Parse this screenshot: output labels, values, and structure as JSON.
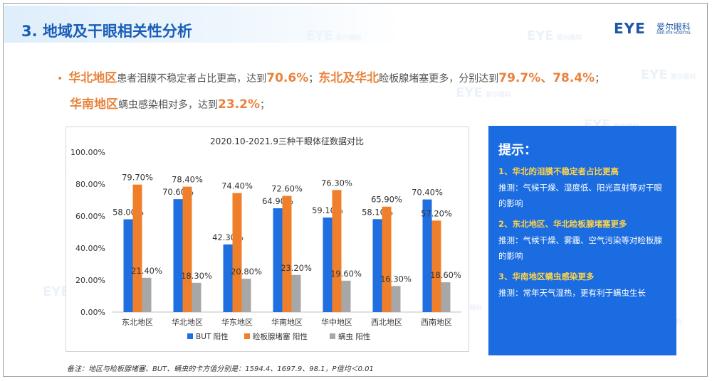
{
  "slide": {
    "title": "3. 地域及干眼相关性分析"
  },
  "logo": {
    "mark": "EYE",
    "cn": "爱尔眼科",
    "en": "AIER EYE HOSPITAL"
  },
  "watermark": {
    "mark": "EYE",
    "cn": "爱尔眼科"
  },
  "summary": {
    "bullet": "•",
    "line1": [
      {
        "text": "华北地区",
        "hl": true
      },
      {
        "text": "患者泪膜不稳定者占比更高，达到",
        "hl": false
      },
      {
        "text": "70.6%",
        "hl": true
      },
      {
        "text": "；",
        "hl": false
      },
      {
        "text": "东北及华北",
        "hl": true
      },
      {
        "text": "睑板腺堵塞更多，分别达到",
        "hl": false
      },
      {
        "text": "79.7%、78.4%",
        "hl": true
      },
      {
        "text": "；",
        "hl": false
      }
    ],
    "line2": [
      {
        "text": "华南地区",
        "hl": true
      },
      {
        "text": "螨虫感染相对多，达到",
        "hl": false
      },
      {
        "text": "23.2%",
        "hl": true
      },
      {
        "text": "；",
        "hl": false
      }
    ]
  },
  "chart_data": {
    "type": "bar",
    "title": "2020.10-2021.9三种干眼体征数据对比",
    "categories": [
      "东北地区",
      "华北地区",
      "华东地区",
      "华南地区",
      "华中地区",
      "西北地区",
      "西南地区"
    ],
    "series": [
      {
        "name": "BUT 阳性",
        "color": "#1f6fe0",
        "values": [
          58.0,
          70.6,
          42.3,
          64.9,
          59.1,
          58.1,
          70.4
        ],
        "labels": [
          "58.00%",
          "70.60%",
          "42.30%",
          "64.90%",
          "59.10%",
          "58.10%",
          "70.40%"
        ]
      },
      {
        "name": "睑板腺堵塞 阳性",
        "color": "#f07f2c",
        "values": [
          79.7,
          78.4,
          74.4,
          72.6,
          76.3,
          65.9,
          57.2
        ],
        "labels": [
          "79.70%",
          "78.40%",
          "74.40%",
          "72.60%",
          "76.30%",
          "65.90%",
          "57.20%"
        ]
      },
      {
        "name": "螨虫 阳性",
        "color": "#a7a7a7",
        "values": [
          21.4,
          18.3,
          20.8,
          23.2,
          19.6,
          16.3,
          18.6
        ],
        "labels": [
          "21.40%",
          "18.30%",
          "20.80%",
          "23.20%",
          "19.60%",
          "16.30%",
          "18.60%"
        ]
      }
    ],
    "ylim": [
      0,
      100
    ],
    "yticks": [
      "0.00%",
      "20.00%",
      "40.00%",
      "60.00%",
      "80.00%",
      "100.00%"
    ],
    "ytick_values": [
      0,
      20,
      40,
      60,
      80,
      100
    ],
    "grid": false,
    "legend_position": "bottom"
  },
  "footnote": "备注：地区与睑板腺堵塞、BUT、螨虫的卡方值分别是：1594.4、1697.9、98.1，P值均＜0.01",
  "tips": {
    "title": "提示：",
    "items": [
      {
        "heading": "1、华北的泪膜不稳定者占比更高",
        "body": "推测：气候干燥、湿度低、阳光直射等对干眼的影响"
      },
      {
        "heading": "2、东北地区、华北睑板腺堵塞更多",
        "body": "推测：气候干燥、雾霾、空气污染等对睑板腺的影响"
      },
      {
        "heading": "3、华南地区螨虫感染更多",
        "body": "推测：常年天气湿热，更有利于螨虫生长"
      }
    ]
  }
}
